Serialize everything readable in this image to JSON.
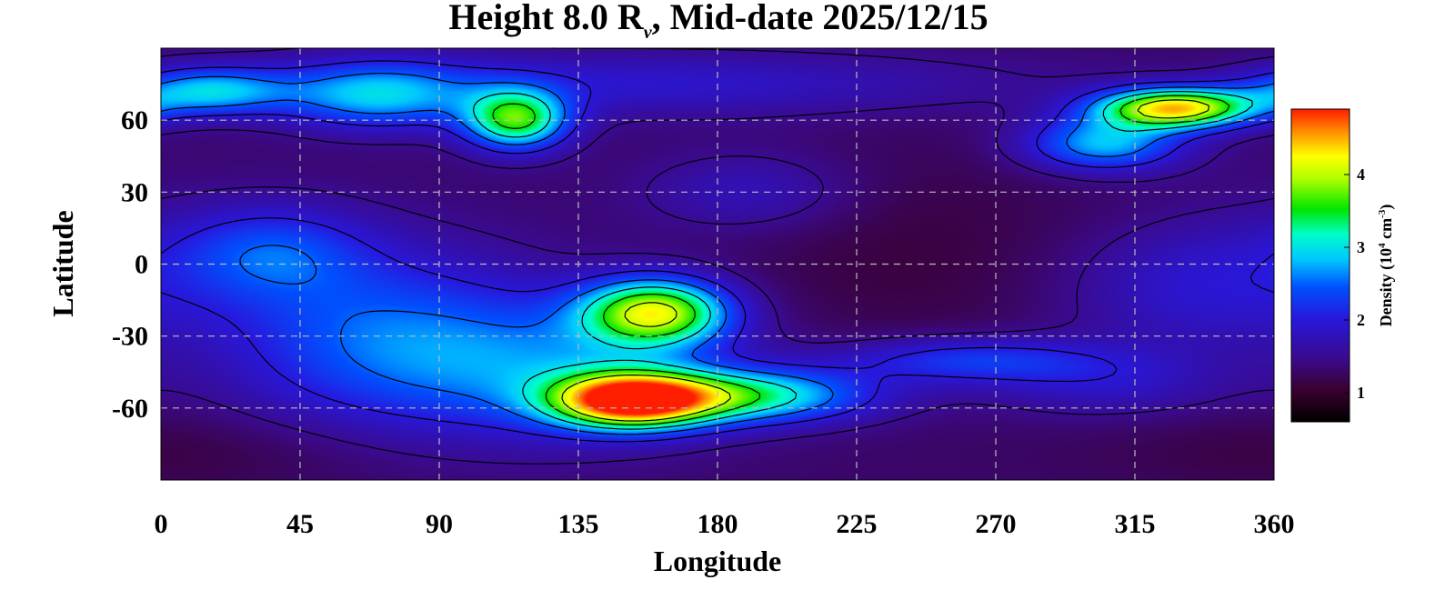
{
  "chart_data": {
    "type": "heatmap",
    "title": {
      "prefix": "Height 8.0 R",
      "subscript": "ν",
      "suffix": ", Mid-date 2025/12/15"
    },
    "xlabel": "Longitude",
    "ylabel": "Latitude",
    "xlim": [
      0,
      360
    ],
    "ylim": [
      -90,
      90
    ],
    "xticks": [
      0,
      45,
      90,
      135,
      180,
      225,
      270,
      315,
      360
    ],
    "yticks": [
      60,
      30,
      0,
      -30,
      -60
    ],
    "ytick_labels": [
      "60",
      "30",
      "0",
      "-30",
      "-60"
    ],
    "grid": true,
    "colorbar": {
      "label_prefix": "Density (10",
      "label_sup1": "4",
      "label_mid": " cm",
      "label_sup2": "-3",
      "label_suffix": ")",
      "range": [
        0.6,
        4.9
      ],
      "ticks": [
        1,
        2,
        3,
        4
      ],
      "colormap": [
        [
          0.0,
          "#000000"
        ],
        [
          0.1,
          "#3a0030"
        ],
        [
          0.2,
          "#3a0a8c"
        ],
        [
          0.33,
          "#2818dc"
        ],
        [
          0.43,
          "#0050ff"
        ],
        [
          0.52,
          "#00c8ff"
        ],
        [
          0.6,
          "#00ffc8"
        ],
        [
          0.68,
          "#00e600"
        ],
        [
          0.78,
          "#b4ff00"
        ],
        [
          0.85,
          "#ffff00"
        ],
        [
          0.93,
          "#ff8c00"
        ],
        [
          1.0,
          "#ff1e00"
        ]
      ]
    },
    "background_density": 1.3,
    "features": [
      {
        "lon": 152,
        "lat": -57,
        "slon": 18,
        "slat": 8,
        "density": 3.2
      },
      {
        "lon": 190,
        "lat": -55,
        "slon": 28,
        "slat": 8,
        "density": 1.8
      },
      {
        "lon": 160,
        "lat": -20,
        "slon": 17,
        "slat": 10,
        "density": 2.6
      },
      {
        "lon": 130,
        "lat": -45,
        "slon": 38,
        "slat": 20,
        "density": 1.0
      },
      {
        "lon": 70,
        "lat": -30,
        "slon": 38,
        "slat": 26,
        "density": 1.1
      },
      {
        "lon": 35,
        "lat": 5,
        "slon": 22,
        "slat": 14,
        "density": 0.9
      },
      {
        "lon": 260,
        "lat": -40,
        "slon": 30,
        "slat": 7,
        "density": 0.9
      },
      {
        "lon": 115,
        "lat": 60,
        "slon": 12,
        "slat": 9,
        "density": 2.2
      },
      {
        "lon": 70,
        "lat": 70,
        "slon": 22,
        "slat": 10,
        "density": 1.3
      },
      {
        "lon": 15,
        "lat": 72,
        "slon": 18,
        "slat": 7,
        "density": 1.4
      },
      {
        "lon": 328,
        "lat": 65,
        "slon": 18,
        "slat": 6,
        "density": 3.0
      },
      {
        "lon": 305,
        "lat": 50,
        "slon": 18,
        "slat": 8,
        "density": 1.5
      },
      {
        "lon": 150,
        "lat": 75,
        "slon": 90,
        "slat": 10,
        "density": 0.6
      },
      {
        "lon": 335,
        "lat": -8,
        "slon": 30,
        "slat": 30,
        "density": 0.8
      },
      {
        "lon": 190,
        "lat": 30,
        "slon": 25,
        "slat": 12,
        "density": 0.5
      },
      {
        "lon": 305,
        "lat": -50,
        "slon": 30,
        "slat": 10,
        "density": 0.5
      },
      {
        "lon": 240,
        "lat": 5,
        "slon": 40,
        "slat": 30,
        "density": -0.2
      },
      {
        "lon": 330,
        "lat": 20,
        "slon": 30,
        "slat": 20,
        "density": -0.3
      },
      {
        "lon": 340,
        "lat": -40,
        "slon": 30,
        "slat": 20,
        "density": -0.3
      },
      {
        "lon": 10,
        "lat": -78,
        "slon": 50,
        "slat": 12,
        "density": -0.2
      }
    ]
  }
}
